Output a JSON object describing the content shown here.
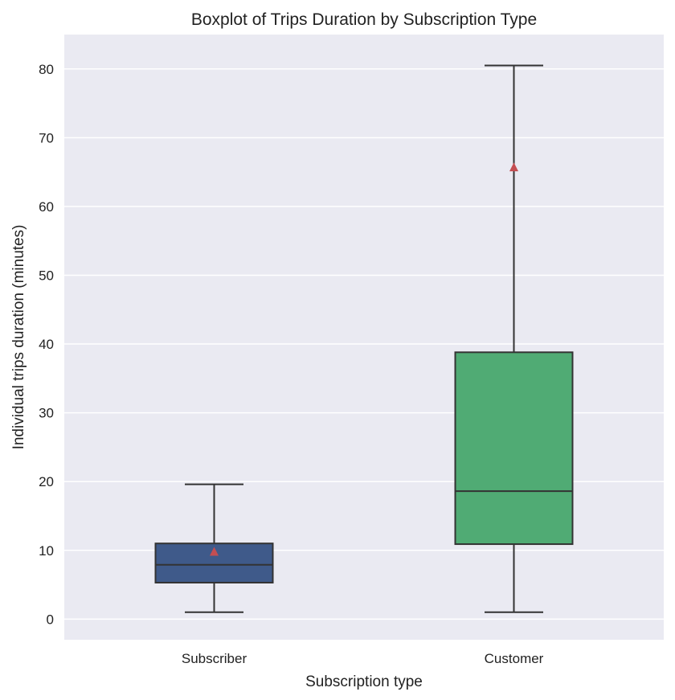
{
  "chart_data": {
    "type": "box",
    "title": "Boxplot of Trips Duration by Subscription Type",
    "xlabel": "Subscription type",
    "ylabel": "Individual trips duration (minutes)",
    "ylim": [
      -3,
      85
    ],
    "yticks": [
      0,
      10,
      20,
      30,
      40,
      50,
      60,
      70,
      80
    ],
    "grid": true,
    "categories": [
      "Subscriber",
      "Customer"
    ],
    "boxes": [
      {
        "category": "Subscriber",
        "whisker_low": 1.0,
        "q1": 5.3,
        "median": 7.9,
        "q3": 11.0,
        "whisker_high": 19.6,
        "mean": 9.8,
        "color": "#3f5a8a"
      },
      {
        "category": "Customer",
        "whisker_low": 1.0,
        "q1": 10.9,
        "median": 18.6,
        "q3": 38.8,
        "whisker_high": 80.5,
        "mean": 65.7,
        "color": "#50ab74"
      }
    ],
    "colors": {
      "background": "#eaeaf2",
      "grid": "#ffffff",
      "line": "#333333",
      "mean_marker": "#c44e52"
    }
  }
}
